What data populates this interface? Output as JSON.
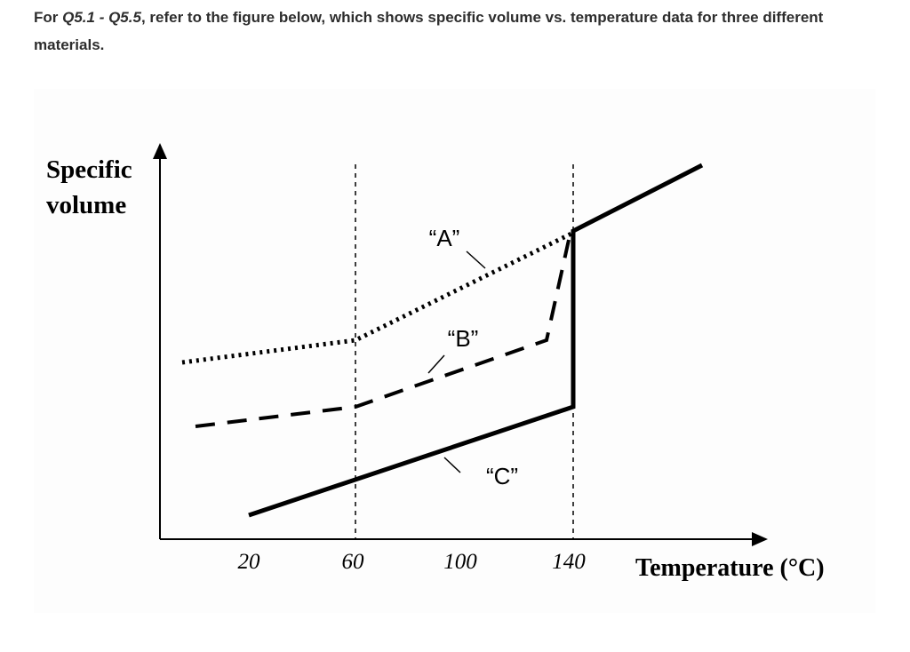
{
  "question": {
    "prefix": "For",
    "emphasis": "Q5.1 - Q5.5",
    "rest": ", refer to the figure below, which shows specific volume vs. temperature data for three different materials."
  },
  "figure": {
    "y_label_lines": [
      "Specific",
      "volume"
    ],
    "x_label": "Temperature (°C)",
    "x_tick_labels": [
      "20",
      "60",
      "100",
      "140"
    ],
    "curve_labels": [
      "“A”",
      "“B”",
      "“C”"
    ]
  }
}
